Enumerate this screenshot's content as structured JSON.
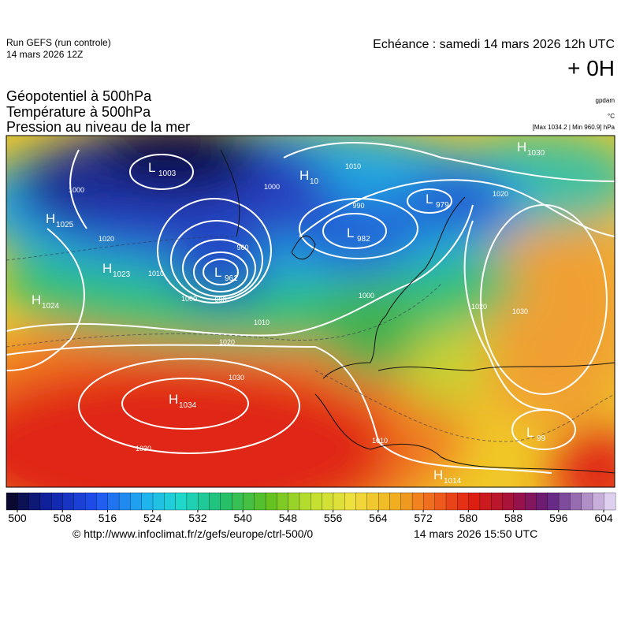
{
  "header": {
    "run": "Run GEFS (run controle)",
    "run_date": "14 mars 2026 12Z",
    "valid": "Echéance : samedi 14 mars 2026 12h UTC",
    "lead": "+ 0H",
    "titles": [
      "Géopotentiel à 500hPa",
      "Température à 500hPa",
      "Pression au niveau de la mer"
    ],
    "units": [
      "gpdam",
      "°C",
      "[Max 1034.2 | Min 960.9] hPa"
    ]
  },
  "map": {
    "centers": [
      {
        "letter": "L",
        "value": "1003"
      },
      {
        "letter": "H",
        "value": "1025"
      },
      {
        "letter": "H",
        "value": "1023"
      },
      {
        "letter": "H",
        "value": "1024"
      },
      {
        "letter": "L",
        "value": "961"
      },
      {
        "letter": "H",
        "value": "1034"
      },
      {
        "letter": "L",
        "value": "982"
      },
      {
        "letter": "L",
        "value": "979"
      },
      {
        "letter": "H",
        "value": "1030"
      },
      {
        "letter": "H",
        "value": "1014"
      },
      {
        "letter": "L",
        "value": "99"
      },
      {
        "letter": "H",
        "value": "10"
      }
    ],
    "isobar_labels": [
      "1000",
      "1020",
      "1010",
      "1000",
      "990",
      "960",
      "1020",
      "1030",
      "1030",
      "1010",
      "990",
      "1010",
      "1000",
      "1020",
      "1030",
      "1020",
      "1010",
      "1000"
    ]
  },
  "colorbar": {
    "ticks": [
      500,
      508,
      516,
      524,
      532,
      540,
      548,
      556,
      564,
      572,
      580,
      588,
      596,
      604
    ]
  },
  "footer": {
    "source": "© http://www.infoclimat.fr/z/gefs/europe/ctrl-500/0",
    "generated": "14 mars 2026 15:50 UTC"
  }
}
